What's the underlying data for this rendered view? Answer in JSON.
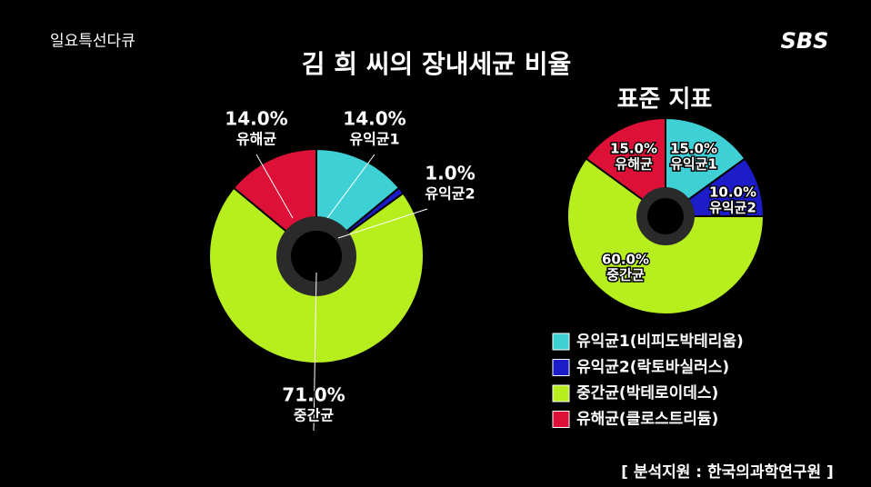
{
  "header": {
    "program": "일요특선다큐",
    "logo": "SBS"
  },
  "footer": {
    "credit": "[ 분석지원 : 한국의과학연구원 ]"
  },
  "chart_data": [
    {
      "type": "pie",
      "title": "김 희 씨의 장내세균 비율",
      "categories": [
        "유익균1",
        "유익균2",
        "중간균",
        "유해균"
      ],
      "values": [
        14,
        1,
        71,
        14
      ],
      "value_labels": [
        "14.0%",
        "1.0%",
        "71.0%",
        "14.0%"
      ],
      "colors": [
        "#3fd0d6",
        "#1c1cc8",
        "#b7ee1e",
        "#dd1038"
      ]
    },
    {
      "type": "pie",
      "title": "표준 지표",
      "categories": [
        "유익균1",
        "유익균2",
        "중간균",
        "유해균"
      ],
      "values": [
        15,
        10,
        60,
        15
      ],
      "value_labels": [
        "15.0%",
        "10.0%",
        "60.0%",
        "15.0%"
      ],
      "colors": [
        "#3fd0d6",
        "#1c1cc8",
        "#b7ee1e",
        "#dd1038"
      ],
      "legend_labels": [
        "유익균1(비피도박테리움)",
        "유익균2(락토바실러스)",
        "중간균(박테로이데스)",
        "유해균(클로스트리듐)"
      ]
    }
  ]
}
